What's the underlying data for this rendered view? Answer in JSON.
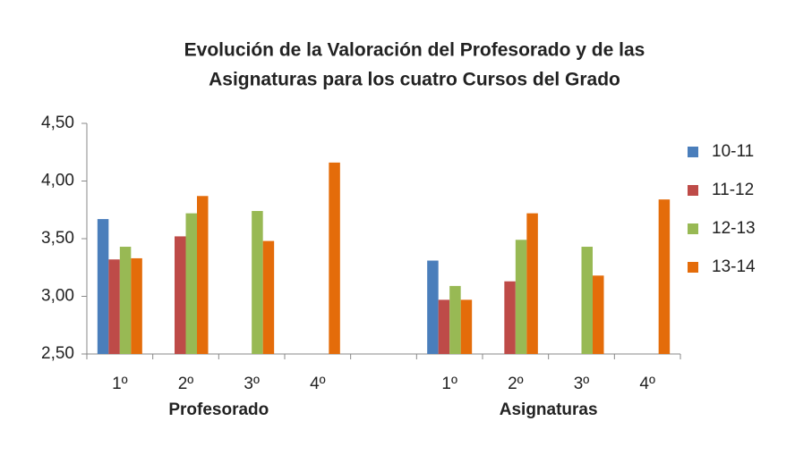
{
  "chart_data": {
    "type": "bar",
    "title": [
      "Evolución de la Valoración del Profesorado y de las",
      "Asignaturas para los cuatro Cursos del Grado"
    ],
    "categories": [
      "1º",
      "2º",
      "3º",
      "4º",
      null,
      "1º",
      "2º",
      "3º",
      "4º"
    ],
    "group_labels": [
      "Profesorado",
      "Asignaturas"
    ],
    "series": [
      {
        "name": "10-11",
        "color": "#4a7ebb",
        "values": [
          3.67,
          null,
          null,
          null,
          null,
          3.31,
          null,
          null,
          null
        ]
      },
      {
        "name": "11-12",
        "color": "#be4b48",
        "values": [
          3.32,
          3.52,
          null,
          null,
          null,
          2.97,
          3.13,
          null,
          null
        ]
      },
      {
        "name": "12-13",
        "color": "#98b954",
        "values": [
          3.43,
          3.72,
          3.74,
          null,
          null,
          3.09,
          3.49,
          3.43,
          null
        ]
      },
      {
        "name": "13-14",
        "color": "#e46c0a",
        "values": [
          3.33,
          3.87,
          3.48,
          4.16,
          null,
          2.97,
          3.72,
          3.18,
          3.84
        ]
      }
    ],
    "ylim": [
      2.5,
      4.5
    ],
    "yticks": [
      {
        "value": 2.5,
        "label": "2,50"
      },
      {
        "value": 3,
        "label": "3,00"
      },
      {
        "value": 3.5,
        "label": "3,50"
      },
      {
        "value": 4,
        "label": "4,00"
      },
      {
        "value": 4.5,
        "label": "4,50"
      }
    ],
    "grid": false,
    "legend": "right"
  }
}
